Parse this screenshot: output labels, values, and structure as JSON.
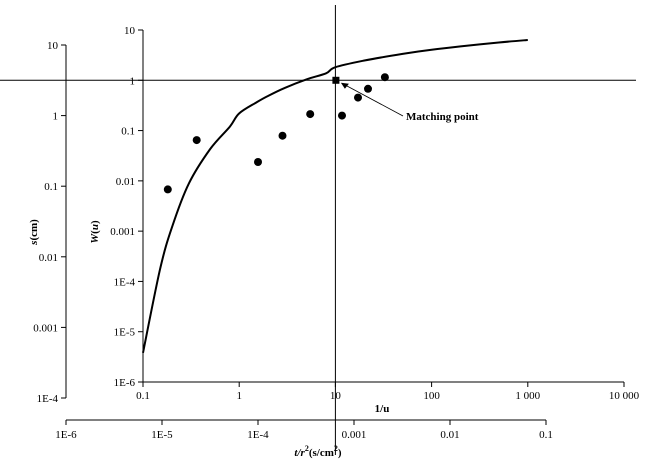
{
  "chart_data": {
    "type": "scatter",
    "description_axes": {
      "w_axis": {
        "label_prefix": "W",
        "label_arg": "u",
        "scale": "log",
        "range": [
          1e-06,
          10
        ],
        "tick_labels": [
          "1E-6",
          "1E-5",
          "1E-4",
          "0.001",
          "0.01",
          "0.1",
          "1",
          "10"
        ]
      },
      "inv_u_axis": {
        "label": "1/u",
        "scale": "log",
        "range": [
          0.1,
          10000
        ],
        "tick_labels": [
          "0.1",
          "1",
          "10",
          "100",
          "1 000",
          "10 000"
        ]
      },
      "s_axis": {
        "label_prefix": "s",
        "label_unit": "cm",
        "scale": "log",
        "range": [
          0.0001,
          10
        ],
        "tick_labels": [
          "1E-4",
          "0.001",
          "0.01",
          "0.1",
          "1",
          "10"
        ]
      },
      "t_axis": {
        "label_prefix": "t/r",
        "label_sup": "2",
        "label_unit": "s/cm",
        "label_unit_sup": "2",
        "scale": "log",
        "range": [
          1e-06,
          0.1
        ],
        "tick_labels": [
          "1E-6",
          "1E-5",
          "1E-4",
          "0.001",
          "0.01",
          "0.1"
        ]
      }
    },
    "series": [
      {
        "kind": "type-curve",
        "x_inv_u": [
          0.1,
          0.15,
          0.2,
          0.3,
          0.5,
          0.8,
          1,
          1.5,
          2,
          3,
          5,
          8,
          10,
          20,
          50,
          100,
          200,
          500,
          1000
        ],
        "y_W": [
          3.8e-06,
          0.00017,
          0.0012,
          0.0089,
          0.043,
          0.12,
          0.22,
          0.36,
          0.49,
          0.71,
          1.04,
          1.38,
          1.82,
          2.47,
          3.35,
          4.04,
          4.72,
          5.64,
          6.33
        ]
      },
      {
        "kind": "observed",
        "t_over_r2": [
          1.15e-05,
          2.3e-05,
          0.0001,
          0.00018,
          0.00035,
          0.00075,
          0.0011,
          0.0014,
          0.0021
        ],
        "s_cm": [
          0.09,
          0.45,
          0.22,
          0.52,
          1.05,
          1.0,
          1.8,
          2.4,
          3.5
        ]
      }
    ],
    "matching_point": {
      "label": "Matching point",
      "inv_u": 10,
      "W": 1
    }
  }
}
